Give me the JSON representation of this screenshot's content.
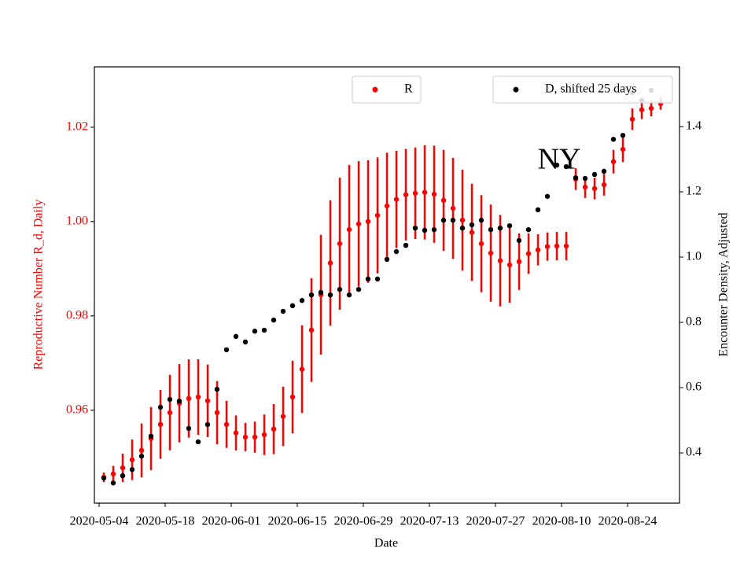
{
  "chart_data": {
    "type": "errorbar-scatter",
    "annotation": "NY",
    "x_label": "Date",
    "y_label": "Reproductive Number R_d, Daily",
    "y2_label": "Encounter Density, Adjusted",
    "xlim": [
      "2020-05-03",
      "2020-09-04"
    ],
    "xticks": [
      "2020-05-04",
      "2020-05-18",
      "2020-06-01",
      "2020-06-15",
      "2020-06-29",
      "2020-07-13",
      "2020-07-27",
      "2020-08-10",
      "2020-08-24"
    ],
    "ylim": [
      0.9403,
      1.0328
    ],
    "yticks": [
      0.96,
      0.98,
      {
        "value": 1,
        "label": "1.00"
      },
      1.02
    ],
    "y2lim": [
      0.246,
      1.583
    ],
    "y2ticks": [
      0.4,
      0.6,
      0.8,
      {
        "value": 1,
        "label": "1.0"
      },
      1.2,
      1.4
    ],
    "series": [
      {
        "name": "R",
        "color": "#ff0000",
        "axis": "y",
        "x": [
          "2020-05-05",
          "2020-05-07",
          "2020-05-09",
          "2020-05-11",
          "2020-05-13",
          "2020-05-15",
          "2020-05-17",
          "2020-05-19",
          "2020-05-21",
          "2020-05-23",
          "2020-05-25",
          "2020-05-27",
          "2020-05-29",
          "2020-05-31",
          "2020-06-02",
          "2020-06-04",
          "2020-06-06",
          "2020-06-08",
          "2020-06-10",
          "2020-06-12",
          "2020-06-14",
          "2020-06-16",
          "2020-06-18",
          "2020-06-20",
          "2020-06-22",
          "2020-06-24",
          "2020-06-26",
          "2020-06-28",
          "2020-06-30",
          "2020-07-02",
          "2020-07-04",
          "2020-07-06",
          "2020-07-08",
          "2020-07-10",
          "2020-07-12",
          "2020-07-14",
          "2020-07-16",
          "2020-07-18",
          "2020-07-20",
          "2020-07-22",
          "2020-07-24",
          "2020-07-26",
          "2020-07-28",
          "2020-07-30",
          "2020-08-01",
          "2020-08-03",
          "2020-08-05",
          "2020-08-07",
          "2020-08-09",
          "2020-08-11",
          "2020-08-13",
          "2020-08-15",
          "2020-08-17",
          "2020-08-19",
          "2020-08-21",
          "2020-08-23",
          "2020-08-25",
          "2020-08-27",
          "2020-08-29",
          "2020-08-31"
        ],
        "values": [
          0.9458,
          0.9465,
          0.9478,
          0.9495,
          0.9515,
          0.954,
          0.957,
          0.9595,
          0.9615,
          0.9625,
          0.9628,
          0.962,
          0.9595,
          0.957,
          0.9552,
          0.9543,
          0.9543,
          0.9548,
          0.956,
          0.9587,
          0.9628,
          0.9687,
          0.977,
          0.9845,
          0.9912,
          0.9953,
          0.9983,
          0.9995,
          1.0,
          1.0013,
          1.0033,
          1.0047,
          1.0057,
          1.006,
          1.0062,
          1.0058,
          1.0045,
          1.0028,
          1.0003,
          0.9977,
          0.9953,
          0.9933,
          0.9917,
          0.9908,
          0.9915,
          0.9932,
          0.994,
          0.9947,
          0.9948,
          0.9948,
          1.009,
          1.0073,
          1.007,
          1.0078,
          1.0127,
          1.0153,
          1.0217,
          1.0237,
          1.024,
          1.025
        ],
        "errors": [
          0.001,
          0.0017,
          0.003,
          0.0043,
          0.0057,
          0.0067,
          0.0073,
          0.008,
          0.0083,
          0.0083,
          0.008,
          0.0077,
          0.0067,
          0.005,
          0.0037,
          0.003,
          0.0033,
          0.0043,
          0.0053,
          0.0063,
          0.0077,
          0.0093,
          0.011,
          0.0127,
          0.0133,
          0.014,
          0.0137,
          0.0133,
          0.013,
          0.0123,
          0.0113,
          0.0103,
          0.0097,
          0.0097,
          0.01,
          0.0103,
          0.0107,
          0.0107,
          0.0107,
          0.0103,
          0.0103,
          0.0103,
          0.0097,
          0.008,
          0.006,
          0.0043,
          0.0033,
          0.003,
          0.003,
          0.003,
          0.0023,
          0.0023,
          0.0023,
          0.0023,
          0.0025,
          0.0027,
          0.0023,
          0.002,
          0.0017,
          0.0013
        ]
      },
      {
        "name": "D, shifted 25 days",
        "color": "#000000",
        "axis": "y2",
        "x": [
          "2020-05-05",
          "2020-05-07",
          "2020-05-09",
          "2020-05-11",
          "2020-05-13",
          "2020-05-15",
          "2020-05-17",
          "2020-05-19",
          "2020-05-21",
          "2020-05-23",
          "2020-05-25",
          "2020-05-27",
          "2020-05-29",
          "2020-05-31",
          "2020-06-02",
          "2020-06-04",
          "2020-06-06",
          "2020-06-08",
          "2020-06-10",
          "2020-06-12",
          "2020-06-14",
          "2020-06-16",
          "2020-06-18",
          "2020-06-20",
          "2020-06-22",
          "2020-06-24",
          "2020-06-26",
          "2020-06-28",
          "2020-06-30",
          "2020-07-02",
          "2020-07-04",
          "2020-07-06",
          "2020-07-08",
          "2020-07-10",
          "2020-07-12",
          "2020-07-14",
          "2020-07-16",
          "2020-07-18",
          "2020-07-20",
          "2020-07-22",
          "2020-07-24",
          "2020-07-26",
          "2020-07-28",
          "2020-07-30",
          "2020-08-01",
          "2020-08-03",
          "2020-08-05",
          "2020-08-07",
          "2020-08-09",
          "2020-08-11",
          "2020-08-13",
          "2020-08-15",
          "2020-08-17",
          "2020-08-19",
          "2020-08-21",
          "2020-08-23",
          "2020-08-25",
          "2020-08-27",
          "2020-08-29"
        ],
        "values": [
          0.323,
          0.308,
          0.33,
          0.349,
          0.39,
          0.451,
          0.54,
          0.564,
          0.559,
          0.475,
          0.434,
          0.487,
          0.595,
          0.716,
          0.757,
          0.74,
          0.773,
          0.776,
          0.807,
          0.834,
          0.851,
          0.867,
          0.884,
          0.892,
          0.884,
          0.901,
          0.884,
          0.901,
          0.933,
          0.933,
          0.993,
          1.017,
          1.036,
          1.089,
          1.082,
          1.084,
          1.113,
          1.113,
          1.089,
          1.099,
          1.113,
          1.084,
          1.089,
          1.096,
          1.051,
          1.084,
          1.145,
          1.186,
          1.282,
          1.277,
          1.243,
          1.241,
          1.253,
          1.263,
          1.361,
          1.373,
          1.504,
          1.48,
          1.511
        ]
      }
    ]
  }
}
